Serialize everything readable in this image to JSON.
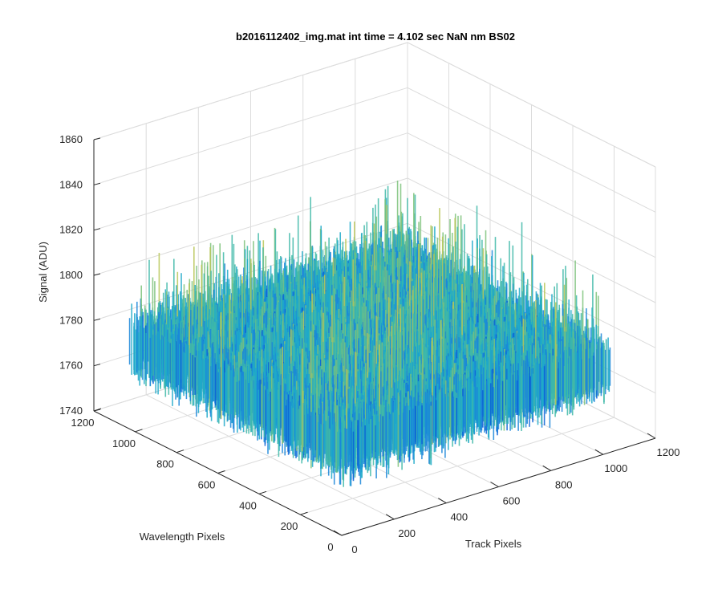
{
  "chart_data": {
    "type": "surface",
    "title": "b2016112402_img.mat int time = 4.102 sec  NaN nm BS02",
    "zlabel": "Signal (ADU)",
    "xlabel": "Track Pixels",
    "ylabel": "Wavelength Pixels",
    "x_ticks": [
      "0",
      "200",
      "400",
      "600",
      "800",
      "1000",
      "1200"
    ],
    "y_ticks": [
      "0",
      "200",
      "400",
      "600",
      "800",
      "1000",
      "1200"
    ],
    "z_ticks": [
      "1740",
      "1760",
      "1780",
      "1800",
      "1820",
      "1840",
      "1860"
    ],
    "xlim": [
      0,
      1200
    ],
    "ylim": [
      0,
      1200
    ],
    "zlim": [
      1740,
      1860
    ],
    "surface": {
      "x_range": [
        0,
        1024
      ],
      "y_range": [
        0,
        1024
      ],
      "mean_signal": 1778,
      "noise_peak_to_peak": 60,
      "max_signal": 1850,
      "min_signal": 1742,
      "colormap": [
        "#0a62d6",
        "#1a86d9",
        "#1fa9c9",
        "#3fb8a8",
        "#7cc27a",
        "#b9c657"
      ]
    },
    "grid": true,
    "grid_color": "#dcdcdc",
    "axis_color": "#262626"
  }
}
